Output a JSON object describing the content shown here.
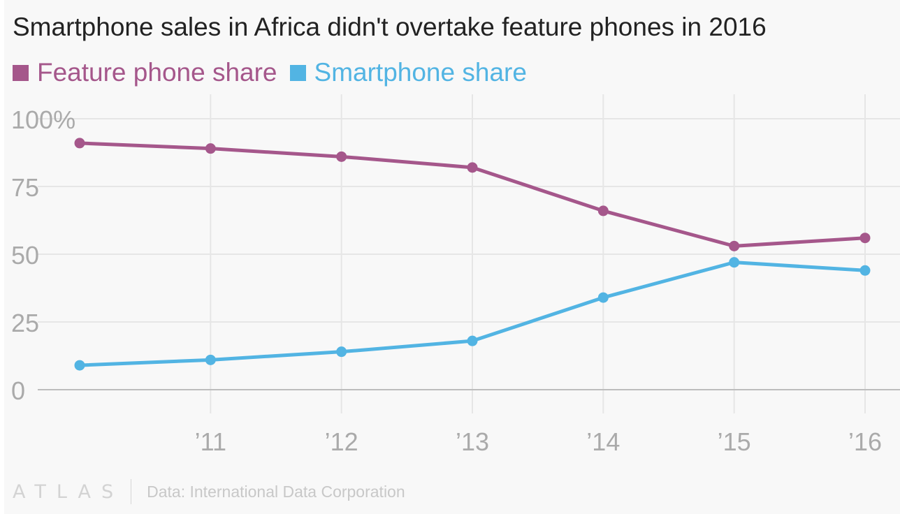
{
  "title": "Smartphone sales in Africa didn't overtake feature phones in 2016",
  "brand": "ATLAS",
  "source": "Data: International Data Corporation",
  "colors": {
    "feature": "#a5578b",
    "smartphone": "#52b4e3",
    "grid": "#e6e6e6",
    "axis": "#bdbdbd",
    "tick_text": "#aaaaaa"
  },
  "chart_data": {
    "type": "line",
    "title": "Smartphone sales in Africa didn't overtake feature phones in 2016",
    "x": [
      2010,
      2011,
      2012,
      2013,
      2014,
      2015,
      2016
    ],
    "x_tick_values": [
      2011,
      2012,
      2013,
      2014,
      2015,
      2016
    ],
    "x_tick_labels": [
      "’11",
      "’12",
      "’13",
      "’14",
      "’15",
      "’16"
    ],
    "y_tick_values": [
      0,
      25,
      50,
      75,
      100
    ],
    "y_tick_labels": [
      "0",
      "25",
      "50",
      "75",
      "100%"
    ],
    "ylim": [
      0,
      100
    ],
    "xlabel": "",
    "ylabel": "",
    "grid": true,
    "legend_position": "top-left",
    "series": [
      {
        "name": "Feature phone share",
        "color": "#a5578b",
        "values": [
          91,
          89,
          86,
          82,
          66,
          53,
          56
        ]
      },
      {
        "name": "Smartphone share",
        "color": "#52b4e3",
        "values": [
          9,
          11,
          14,
          18,
          34,
          47,
          44
        ]
      }
    ]
  }
}
